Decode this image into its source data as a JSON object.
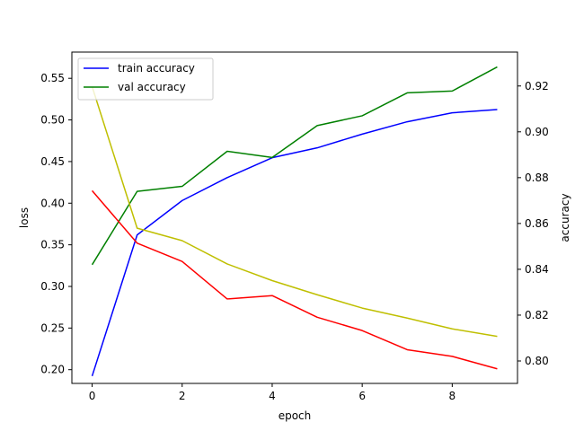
{
  "chart_data": {
    "type": "line",
    "xlabel": "epoch",
    "ylabel_left": "loss",
    "ylabel_right": "accuracy",
    "x": [
      0,
      1,
      2,
      3,
      4,
      5,
      6,
      7,
      8,
      9
    ],
    "xticks": [
      0,
      2,
      4,
      6,
      8
    ],
    "xlim": [
      -0.45,
      9.45
    ],
    "ylim_left": [
      0.1835,
      0.5815
    ],
    "yticks_left": [
      "0.20",
      "0.25",
      "0.30",
      "0.35",
      "0.40",
      "0.45",
      "0.50",
      "0.55"
    ],
    "ylim_right": [
      0.7902,
      0.9348
    ],
    "yticks_right": [
      "0.80",
      "0.82",
      "0.84",
      "0.86",
      "0.88",
      "0.90",
      "0.92"
    ],
    "grid": false,
    "legend_position": "top-left",
    "series": [
      {
        "name": "train accuracy",
        "axis": "right",
        "color": "#0000ff",
        "values": [
          0.7934,
          0.855,
          0.87,
          0.88,
          0.8887,
          0.893,
          0.899,
          0.9044,
          0.9083,
          0.9097
        ]
      },
      {
        "name": "val accuracy",
        "axis": "right",
        "color": "#008000",
        "values": [
          0.842,
          0.874,
          0.8762,
          0.8915,
          0.8888,
          0.9027,
          0.907,
          0.917,
          0.9178,
          0.9283
        ]
      },
      {
        "axis": "left",
        "color": "#bfbf00",
        "values": [
          0.54,
          0.37,
          0.355,
          0.327,
          0.307,
          0.29,
          0.274,
          0.262,
          0.249,
          0.24
        ]
      },
      {
        "axis": "left",
        "color": "#ff0000",
        "values": [
          0.415,
          0.352,
          0.33,
          0.285,
          0.289,
          0.263,
          0.247,
          0.224,
          0.216,
          0.201
        ]
      }
    ]
  }
}
